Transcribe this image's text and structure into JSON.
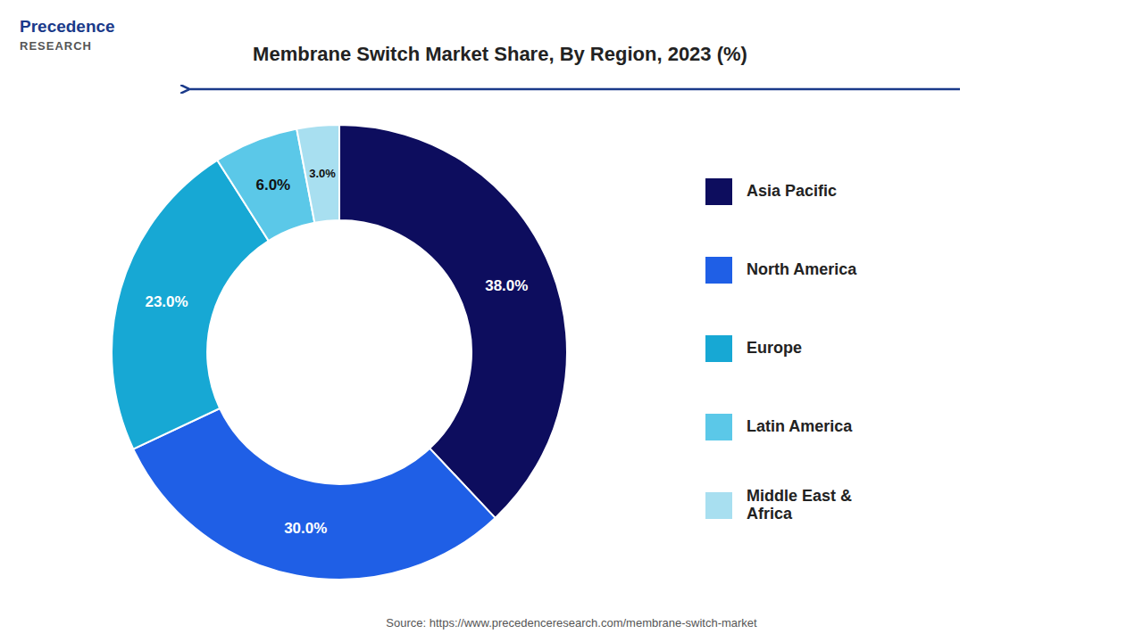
{
  "chart_data": {
    "type": "donut",
    "title": "Membrane Switch Market Share, By Region, 2023 (%)",
    "categories": [
      "Asia Pacific",
      "North America",
      "Europe",
      "Latin America",
      "Middle East &\nAfrica"
    ],
    "values": [
      38.0,
      30.0,
      23.0,
      6.0,
      3.0
    ],
    "value_labels": [
      "38.0%",
      "30.0%",
      "23.0%",
      "6.0%",
      "3.0%"
    ],
    "colors": [
      "#0d0d5e",
      "#1f5fe6",
      "#17a8d4",
      "#5bc8e8",
      "#a8dff0"
    ],
    "data_labels": true,
    "legend": "right",
    "annotations": [
      "Source: https://www.precedenceresearch.com/membrane-switch-market",
      "Precedence",
      "RESEARCH"
    ]
  }
}
